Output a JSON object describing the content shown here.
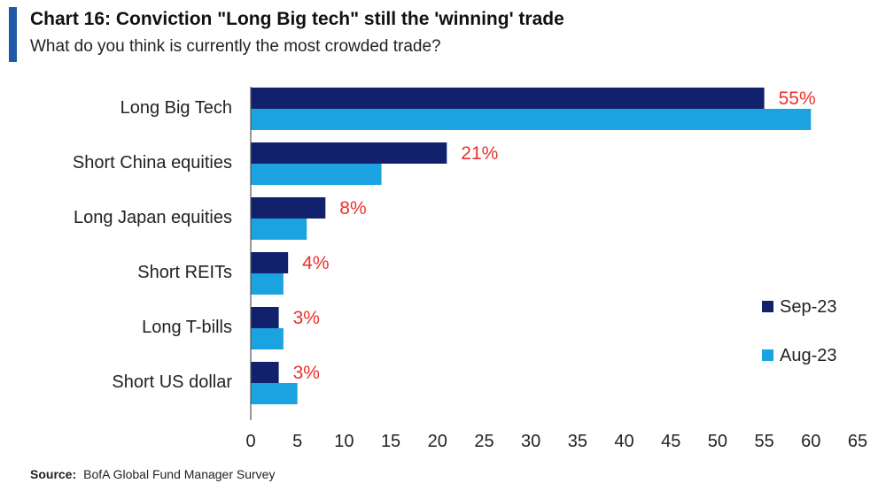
{
  "header": {
    "title": "Chart 16: Conviction \"Long Big tech\" still the 'winning' trade",
    "subtitle": "What do you think is currently the most crowded trade?"
  },
  "source": {
    "label": "Source:",
    "text": "BofA Global Fund Manager Survey"
  },
  "colors": {
    "accent": "#1f5aa8",
    "sep23": "#12216b",
    "aug23": "#1aa3e0",
    "data_label": "#e8322e"
  },
  "chart_data": {
    "type": "bar",
    "orientation": "horizontal",
    "categories": [
      "Long Big Tech",
      "Short China equities",
      "Long Japan equities",
      "Short REITs",
      "Long T-bills",
      "Short US dollar"
    ],
    "series": [
      {
        "name": "Sep-23",
        "values": [
          55,
          21,
          8,
          4,
          3,
          3
        ]
      },
      {
        "name": "Aug-23",
        "values": [
          60,
          14,
          6,
          3.5,
          3.5,
          5
        ]
      }
    ],
    "data_labels": [
      "55%",
      "21%",
      "8%",
      "4%",
      "3%",
      "3%"
    ],
    "xlim": [
      0,
      65
    ],
    "xticks": [
      0,
      5,
      10,
      15,
      20,
      25,
      30,
      35,
      40,
      45,
      50,
      55,
      60,
      65
    ],
    "legend_position": "right",
    "grid": false
  }
}
